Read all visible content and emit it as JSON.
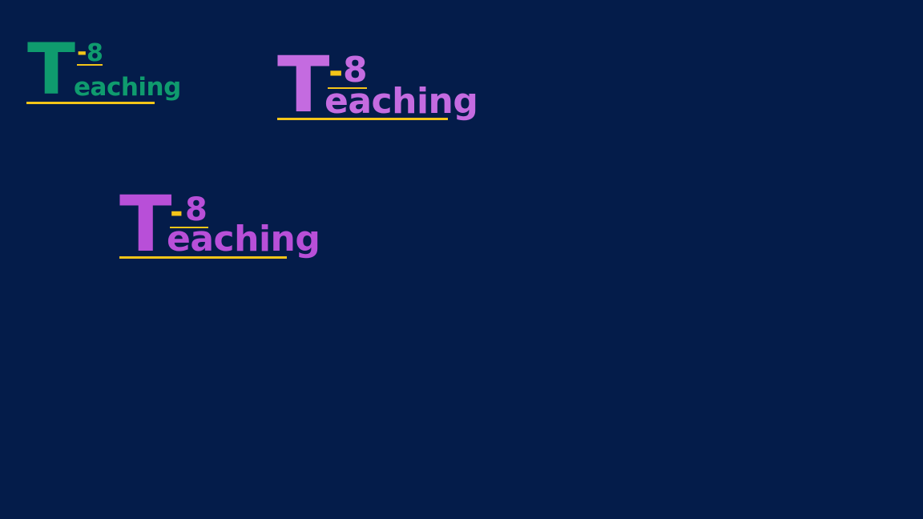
{
  "page": {
    "background": "#041c4a"
  },
  "logos": [
    {
      "name": "logo-green-small",
      "initial": "T",
      "dash": "-",
      "number": "8",
      "word": "eaching",
      "primary_color": "#0f9b6e",
      "accent_color": "#f5c518"
    },
    {
      "name": "logo-violet-large",
      "initial": "T",
      "dash": "-",
      "number": "8",
      "word": "eaching",
      "primary_color": "#c46be0",
      "accent_color": "#f5c518"
    },
    {
      "name": "logo-magenta-large",
      "initial": "T",
      "dash": "-",
      "number": "8",
      "word": "eaching",
      "primary_color": "#b84fd8",
      "accent_color": "#f5c518"
    }
  ]
}
